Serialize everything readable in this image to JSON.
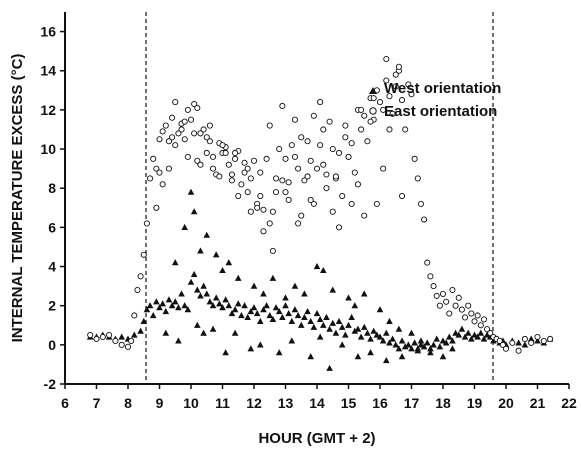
{
  "chart_data": {
    "type": "scatter",
    "title": "",
    "xlabel": "HOUR (GMT + 2)",
    "ylabel": "INTERNAL TEMPERATURE EXCESS (°C)",
    "xlim": [
      6,
      22
    ],
    "ylim": [
      -2,
      17
    ],
    "xticks": [
      "6",
      "7",
      "8",
      "9",
      "10",
      "11",
      "12",
      "13",
      "14",
      "15",
      "16",
      "17",
      "18",
      "19",
      "20",
      "21",
      "22"
    ],
    "yticks": [
      "-2",
      "0",
      "2",
      "4",
      "6",
      "8",
      "10",
      "12",
      "14",
      "16"
    ],
    "grid": false,
    "legend_position": "top-right",
    "reference_lines_x": [
      8.5,
      19.5
    ],
    "series": [
      {
        "name": "West orientation",
        "marker": "filled-triangle",
        "color": "#111111",
        "x": [
          6.8,
          7.0,
          7.2,
          7.4,
          7.6,
          7.8,
          8.0,
          8.2,
          8.4,
          8.5,
          8.6,
          8.7,
          8.8,
          8.9,
          9.0,
          9.1,
          9.2,
          9.3,
          9.4,
          9.5,
          9.6,
          9.7,
          9.8,
          9.9,
          10.0,
          10.1,
          10.2,
          10.3,
          10.4,
          10.5,
          10.6,
          10.7,
          10.8,
          10.9,
          11.0,
          11.1,
          11.2,
          11.3,
          11.4,
          11.5,
          11.6,
          11.7,
          11.8,
          11.9,
          12.0,
          12.1,
          12.2,
          12.3,
          12.4,
          12.5,
          12.6,
          12.7,
          12.8,
          12.9,
          13.0,
          13.1,
          13.2,
          13.3,
          13.4,
          13.5,
          13.6,
          13.7,
          13.8,
          13.9,
          14.0,
          14.1,
          14.2,
          14.3,
          14.4,
          14.5,
          14.6,
          14.7,
          14.8,
          14.9,
          15.0,
          15.1,
          15.2,
          15.3,
          15.4,
          15.5,
          15.6,
          15.7,
          15.8,
          15.9,
          16.0,
          16.1,
          16.2,
          16.3,
          16.4,
          16.5,
          16.6,
          16.7,
          16.8,
          16.9,
          17.0,
          17.1,
          17.2,
          17.3,
          17.4,
          17.5,
          17.6,
          17.7,
          17.8,
          17.9,
          18.0,
          18.1,
          18.2,
          18.3,
          18.4,
          18.5,
          18.6,
          18.7,
          18.8,
          18.9,
          19.0,
          19.1,
          19.2,
          19.3,
          19.4,
          19.5,
          19.6,
          19.7,
          19.8,
          19.9,
          20.0,
          20.2,
          20.4,
          20.6,
          20.8,
          21.0,
          21.2,
          21.4,
          9.5,
          9.8,
          10.0,
          10.1,
          10.3,
          10.5,
          10.8,
          11.0,
          11.2,
          11.5,
          12.0,
          12.3,
          12.6,
          13.0,
          13.3,
          13.6,
          14.0,
          14.2,
          14.5,
          15.0,
          15.2,
          15.5,
          16.0,
          16.3,
          16.6,
          17.0,
          17.3,
          17.6,
          18.0,
          18.3,
          9.2,
          9.6,
          10.2,
          10.4,
          10.7,
          11.1,
          11.4,
          11.9,
          12.2,
          12.8,
          13.2,
          13.8,
          14.1,
          14.4,
          14.8,
          15.3,
          15.7,
          16.2,
          16.7,
          17.2
        ],
        "y": [
          0.4,
          0.4,
          0.5,
          0.4,
          0.3,
          0.4,
          0.3,
          0.5,
          0.7,
          1.2,
          1.8,
          2.0,
          1.5,
          2.2,
          1.9,
          2.1,
          1.7,
          2.3,
          2.0,
          2.2,
          1.9,
          2.6,
          2.0,
          1.8,
          3.2,
          3.6,
          2.8,
          2.5,
          3.0,
          2.6,
          2.2,
          2.0,
          2.4,
          2.1,
          1.9,
          2.3,
          2.0,
          1.6,
          1.8,
          2.1,
          1.5,
          2.0,
          1.4,
          1.7,
          1.9,
          1.6,
          1.2,
          1.8,
          2.0,
          1.5,
          1.3,
          1.9,
          1.7,
          1.4,
          2.0,
          1.6,
          1.2,
          1.8,
          1.5,
          1.0,
          1.4,
          1.7,
          1.2,
          0.9,
          1.6,
          1.3,
          1.0,
          1.4,
          0.8,
          1.1,
          0.6,
          1.2,
          0.9,
          0.5,
          1.0,
          1.4,
          0.7,
          0.8,
          0.4,
          0.9,
          0.6,
          0.3,
          0.7,
          0.5,
          0.4,
          0.2,
          0.6,
          0.1,
          0.3,
          0.0,
          -0.2,
          0.2,
          -0.1,
          0.0,
          -0.2,
          0.1,
          -0.3,
          0.0,
          -0.1,
          0.1,
          -0.2,
          0.0,
          0.3,
          -0.1,
          0.2,
          0.1,
          0.4,
          0.2,
          0.6,
          0.5,
          0.8,
          0.4,
          0.6,
          0.3,
          0.5,
          0.4,
          0.6,
          0.3,
          0.5,
          0.4,
          0.2,
          0.3,
          0.1,
          0.2,
          0.0,
          0.2,
          0.1,
          0.0,
          0.3,
          0.2,
          0.1,
          0.3,
          4.2,
          6.0,
          7.8,
          6.8,
          4.8,
          5.6,
          4.6,
          3.8,
          4.2,
          3.4,
          3.0,
          2.6,
          3.4,
          2.4,
          3.0,
          2.6,
          4.0,
          3.8,
          2.8,
          2.4,
          2.0,
          2.6,
          1.8,
          1.2,
          0.8,
          0.6,
          0.2,
          -0.4,
          -0.6,
          -0.2,
          0.6,
          0.2,
          1.0,
          0.6,
          0.8,
          -0.4,
          0.6,
          -0.2,
          0.0,
          -0.4,
          0.2,
          -0.6,
          0.4,
          -1.2,
          0.0,
          -0.6,
          -0.4,
          -0.8,
          -0.6,
          -0.2
        ]
      },
      {
        "name": "East orientation",
        "marker": "open-circle",
        "color": "#111111",
        "x": [
          6.8,
          7.0,
          7.2,
          7.4,
          7.6,
          7.8,
          8.0,
          8.1,
          8.2,
          8.3,
          8.4,
          8.5,
          8.6,
          8.7,
          8.8,
          8.9,
          9.0,
          9.1,
          9.2,
          9.3,
          9.4,
          9.5,
          9.6,
          9.7,
          9.8,
          9.9,
          10.0,
          10.1,
          10.2,
          10.3,
          10.4,
          10.5,
          10.6,
          10.7,
          10.8,
          10.9,
          11.0,
          11.1,
          11.2,
          11.3,
          11.4,
          11.5,
          11.6,
          11.7,
          11.8,
          11.9,
          12.0,
          12.1,
          12.2,
          12.3,
          12.4,
          12.5,
          12.6,
          12.7,
          12.8,
          12.9,
          13.0,
          13.1,
          13.2,
          13.3,
          13.4,
          13.5,
          13.6,
          13.7,
          13.8,
          13.9,
          14.0,
          14.1,
          14.2,
          14.3,
          14.4,
          14.5,
          14.6,
          14.7,
          14.8,
          14.9,
          15.0,
          15.1,
          15.2,
          15.3,
          15.4,
          15.5,
          15.6,
          15.7,
          15.8,
          15.9,
          16.0,
          16.1,
          16.2,
          16.3,
          16.4,
          16.5,
          16.6,
          16.7,
          16.8,
          16.9,
          17.0,
          17.1,
          17.2,
          17.3,
          17.4,
          17.5,
          17.6,
          17.7,
          17.8,
          17.9,
          18.0,
          18.1,
          18.2,
          18.3,
          18.4,
          18.5,
          18.6,
          18.7,
          18.8,
          18.9,
          19.0,
          19.1,
          19.2,
          19.3,
          19.4,
          19.5,
          19.6,
          19.7,
          19.8,
          19.9,
          20.0,
          20.2,
          20.4,
          20.6,
          20.8,
          21.0,
          21.2,
          21.4,
          8.9,
          9.1,
          9.3,
          9.5,
          9.7,
          9.9,
          10.1,
          10.3,
          10.5,
          10.7,
          10.9,
          11.1,
          11.3,
          11.5,
          11.7,
          11.9,
          12.1,
          12.3,
          12.5,
          12.7,
          12.9,
          13.1,
          13.3,
          13.5,
          13.7,
          13.9,
          14.1,
          14.3,
          14.5,
          14.7,
          14.9,
          15.1,
          15.3,
          15.5,
          15.7,
          15.9,
          16.1,
          16.3,
          16.5,
          16.7,
          9.0,
          9.4,
          9.8,
          10.2,
          10.6,
          11.0,
          11.4,
          11.8,
          12.2,
          12.6,
          13.0,
          13.4,
          13.8,
          14.2,
          14.6,
          15.0,
          15.4,
          15.8,
          16.2,
          16.6
        ],
        "y": [
          0.5,
          0.3,
          0.4,
          0.5,
          0.2,
          0.0,
          -0.1,
          0.2,
          1.5,
          2.8,
          3.5,
          4.6,
          6.2,
          8.5,
          9.5,
          9.0,
          10.5,
          10.9,
          11.2,
          10.4,
          11.6,
          12.4,
          10.8,
          11.3,
          10.5,
          12.0,
          11.5,
          12.3,
          9.4,
          10.8,
          11.0,
          9.8,
          10.4,
          9.6,
          8.7,
          10.3,
          9.8,
          10.1,
          9.2,
          8.7,
          9.5,
          9.9,
          8.2,
          9.3,
          7.8,
          8.5,
          9.4,
          7.2,
          8.8,
          6.9,
          9.5,
          11.2,
          4.8,
          8.5,
          10.0,
          12.2,
          9.5,
          8.3,
          10.2,
          11.5,
          9.0,
          10.6,
          8.4,
          10.4,
          9.4,
          11.7,
          9.0,
          12.4,
          11.0,
          8.7,
          11.4,
          10.0,
          8.5,
          9.8,
          7.6,
          11.2,
          9.6,
          10.3,
          8.8,
          12.0,
          11.0,
          11.7,
          10.4,
          12.6,
          11.5,
          13.0,
          12.4,
          12.0,
          13.5,
          12.7,
          11.8,
          13.2,
          14.0,
          12.5,
          11.0,
          13.3,
          12.8,
          9.5,
          8.5,
          7.2,
          6.4,
          4.2,
          3.5,
          3.0,
          2.5,
          2.0,
          2.6,
          2.2,
          1.6,
          2.8,
          2.0,
          2.4,
          1.8,
          1.4,
          2.0,
          1.6,
          1.2,
          1.5,
          1.0,
          1.3,
          0.8,
          0.6,
          0.4,
          0.3,
          0.2,
          0.0,
          -0.2,
          0.1,
          -0.3,
          0.3,
          0.1,
          0.4,
          0.2,
          0.3,
          7.0,
          8.2,
          9.0,
          10.2,
          11.0,
          9.6,
          10.8,
          9.2,
          10.6,
          9.0,
          8.6,
          9.8,
          8.4,
          7.6,
          8.8,
          6.8,
          7.0,
          5.8,
          6.2,
          7.8,
          8.4,
          7.4,
          9.6,
          6.6,
          8.6,
          7.2,
          10.2,
          8.0,
          6.8,
          6.0,
          10.6,
          7.2,
          8.2,
          6.6,
          11.4,
          7.2,
          9.0,
          11.0,
          13.8,
          7.6,
          8.8,
          10.6,
          11.4,
          12.1,
          11.2,
          10.2,
          9.8,
          9.0,
          7.6,
          6.8,
          7.8,
          6.2,
          7.4,
          9.2,
          8.6,
          9.6,
          12.0,
          12.6,
          14.6,
          14.2
        ]
      }
    ]
  }
}
